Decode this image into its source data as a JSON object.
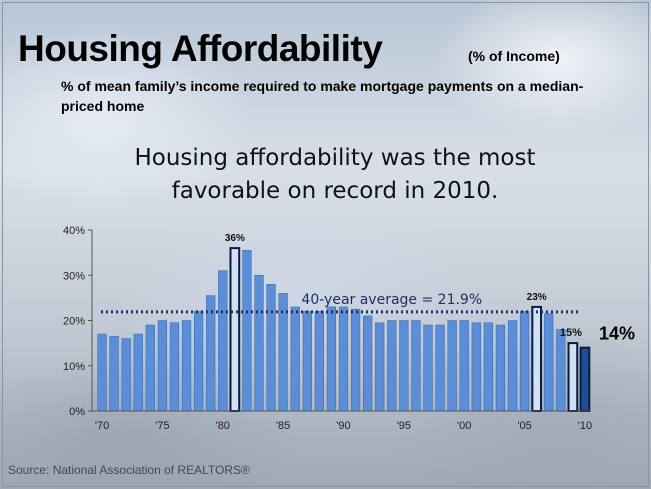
{
  "headline": {
    "line1": "Housing affordability was the most",
    "line2": "favorable on record in 2010."
  },
  "source": "Source: National Association of REALTORS®",
  "colors": {
    "bar": "#5b8ed6",
    "bar_highlight": "#cfe0f7",
    "bar_latest": "#1f4e96",
    "average_line": "#1c2f66"
  },
  "chart_data": {
    "type": "bar",
    "title": "Housing Affordability",
    "unit_note": "(% of Income)",
    "subtitle": "% of mean family’s income required to make mortgage payments on a median-priced home",
    "xlabel": "",
    "ylabel": "",
    "ylim": [
      0,
      40
    ],
    "y_ticks": [
      "0%",
      "10%",
      "20%",
      "30%",
      "40%"
    ],
    "x_ticks": [
      "'70",
      "'75",
      "'80",
      "'85",
      "'90",
      "'95",
      "'00",
      "'05",
      "'10"
    ],
    "grid": false,
    "categories": [
      1970,
      1971,
      1972,
      1973,
      1974,
      1975,
      1976,
      1977,
      1978,
      1979,
      1980,
      1981,
      1982,
      1983,
      1984,
      1985,
      1986,
      1987,
      1988,
      1989,
      1990,
      1991,
      1992,
      1993,
      1994,
      1995,
      1996,
      1997,
      1998,
      1999,
      2000,
      2001,
      2002,
      2003,
      2004,
      2005,
      2006,
      2007,
      2008,
      2009,
      2010
    ],
    "values": [
      17,
      16.5,
      16,
      17,
      19,
      20,
      19.5,
      20,
      22,
      25.5,
      31,
      36,
      35.5,
      30,
      28,
      26,
      23,
      22,
      22,
      23,
      23,
      22.5,
      21,
      19.5,
      20,
      20,
      20,
      19,
      19,
      20,
      20,
      19.5,
      19.5,
      19,
      20,
      22,
      23,
      21.5,
      18,
      15,
      14
    ],
    "highlighted": [
      1981,
      2006,
      2009,
      2010
    ],
    "average": {
      "value": 21.9,
      "label": "40-year average = 21.9%"
    },
    "annotations": [
      {
        "category": 1981,
        "text": "36%"
      },
      {
        "category": 2006,
        "text": "23%"
      },
      {
        "category": 2009,
        "text": "15%"
      },
      {
        "category": 2010,
        "text": "14%"
      }
    ]
  }
}
